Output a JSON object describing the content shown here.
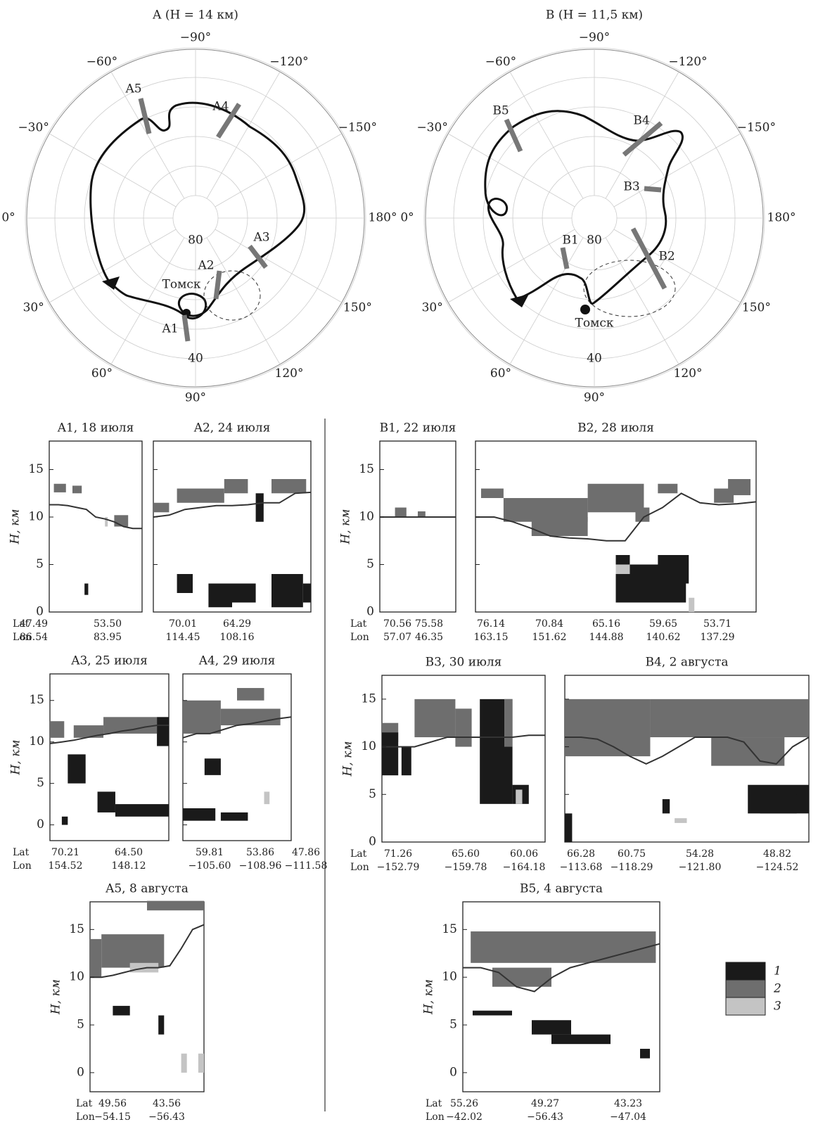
{
  "maps": [
    {
      "title": "A (H = 14 км)",
      "lon_labels": [
        {
          "value": -90,
          "label": "−90°"
        },
        {
          "value": -60,
          "label": "−60°"
        },
        {
          "value": -120,
          "label": "−120°"
        },
        {
          "value": -30,
          "label": "−30°"
        },
        {
          "value": -150,
          "label": "−150°"
        },
        {
          "value": 0,
          "label": "0°"
        },
        {
          "value": 180,
          "label": "180°"
        },
        {
          "value": 30,
          "label": "30°"
        },
        {
          "value": 150,
          "label": "150°"
        },
        {
          "value": 60,
          "label": "60°"
        },
        {
          "value": 120,
          "label": "120°"
        },
        {
          "value": 90,
          "label": "90°"
        }
      ],
      "lat_labels": [
        80,
        40
      ],
      "segments": [
        "A1",
        "A2",
        "A3",
        "A4",
        "A5"
      ],
      "city": "Томск"
    },
    {
      "title": "B (H = 11,5 км)",
      "lon_labels": [
        {
          "value": -90,
          "label": "−90°"
        },
        {
          "value": -60,
          "label": "−60°"
        },
        {
          "value": -120,
          "label": "−120°"
        },
        {
          "value": -30,
          "label": "−30°"
        },
        {
          "value": -150,
          "label": "−150°"
        },
        {
          "value": 0,
          "label": "0°"
        },
        {
          "value": 180,
          "label": "180°"
        },
        {
          "value": 30,
          "label": "30°"
        },
        {
          "value": 150,
          "label": "150°"
        },
        {
          "value": 60,
          "label": "60°"
        },
        {
          "value": 120,
          "label": "120°"
        },
        {
          "value": 90,
          "label": "90°"
        }
      ],
      "lat_labels": [
        80,
        40
      ],
      "segments": [
        "B1",
        "B2",
        "B3",
        "B4",
        "B5"
      ],
      "city": "Томск"
    }
  ],
  "y_label": "H, км",
  "track_labels": {
    "lat": "Lat",
    "lon": "Lon"
  },
  "yticks": [
    0,
    5,
    10,
    15
  ],
  "panels": [
    {
      "title": "A1, 18 июля",
      "ylim": [
        0,
        18
      ],
      "tick_labels": true,
      "lat": [
        "47.49",
        "53.50"
      ],
      "lon": [
        "86.54",
        "83.95"
      ],
      "tropopause": [
        11.3,
        11.3,
        11.2,
        11,
        10.8,
        10,
        9.8,
        9.5,
        9,
        8.8,
        8.8
      ],
      "clouds": [
        {
          "class": 2,
          "x": [
            0.05,
            0.18
          ],
          "h": [
            12.6,
            13.5
          ]
        },
        {
          "class": 2,
          "x": [
            0.25,
            0.35
          ],
          "h": [
            12.5,
            13.3
          ]
        },
        {
          "class": 2,
          "x": [
            0.7,
            0.85
          ],
          "h": [
            9,
            10.2
          ]
        },
        {
          "class": 1,
          "x": [
            0.38,
            0.42
          ],
          "h": [
            1.8,
            3
          ]
        },
        {
          "class": 3,
          "x": [
            0.6,
            0.63
          ],
          "h": [
            9,
            10
          ]
        }
      ]
    },
    {
      "title": "A2, 24 июля",
      "ylim": [
        0,
        18
      ],
      "tick_labels": false,
      "lat": [
        "70.01",
        "64.29"
      ],
      "lon": [
        "114.45",
        "108.16"
      ],
      "tropopause": [
        10,
        10.2,
        10.8,
        11,
        11.2,
        11.2,
        11.3,
        11.5,
        11.5,
        12.5,
        12.6
      ],
      "clouds": [
        {
          "class": 2,
          "x": [
            0,
            0.1
          ],
          "h": [
            10.5,
            11.5
          ]
        },
        {
          "class": 2,
          "x": [
            0.15,
            0.45
          ],
          "h": [
            11.5,
            13
          ]
        },
        {
          "class": 2,
          "x": [
            0.45,
            0.6
          ],
          "h": [
            12.5,
            14
          ]
        },
        {
          "class": 1,
          "x": [
            0.65,
            0.7
          ],
          "h": [
            9.5,
            12.5
          ]
        },
        {
          "class": 2,
          "x": [
            0.75,
            0.97
          ],
          "h": [
            12.5,
            14
          ]
        },
        {
          "class": 1,
          "x": [
            0.15,
            0.25
          ],
          "h": [
            2,
            4
          ]
        },
        {
          "class": 1,
          "x": [
            0.35,
            0.5
          ],
          "h": [
            0.5,
            3
          ]
        },
        {
          "class": 1,
          "x": [
            0.5,
            0.65
          ],
          "h": [
            1,
            3
          ]
        },
        {
          "class": 1,
          "x": [
            0.75,
            0.95
          ],
          "h": [
            0.5,
            4
          ]
        },
        {
          "class": 1,
          "x": [
            0.95,
            1
          ],
          "h": [
            1,
            3
          ]
        }
      ]
    },
    {
      "title": "B1, 22 июля",
      "ylim": [
        0,
        18
      ],
      "tick_labels": true,
      "lat": [
        "70.56",
        "75.58"
      ],
      "lon": [
        "57.07",
        "46.35"
      ],
      "tropopause": [
        10,
        10,
        10,
        10
      ],
      "clouds": [
        {
          "class": 2,
          "x": [
            0.2,
            0.35
          ],
          "h": [
            10,
            11
          ]
        },
        {
          "class": 2,
          "x": [
            0.5,
            0.6
          ],
          "h": [
            10,
            10.6
          ]
        }
      ]
    },
    {
      "title": "B2, 28 июля",
      "ylim": [
        0,
        18
      ],
      "tick_labels": false,
      "lat": [
        "76.14",
        "70.84",
        "65.16",
        "59.65",
        "53.71"
      ],
      "lon": [
        "163.15",
        "151.62",
        "144.88",
        "140.62",
        "137.29"
      ],
      "tropopause": [
        10,
        10,
        9.5,
        8.8,
        8,
        7.8,
        7.7,
        7.5,
        7.5,
        10,
        11,
        12.5,
        11.5,
        11.3,
        11.4,
        11.6
      ],
      "clouds": [
        {
          "class": 2,
          "x": [
            0.02,
            0.1
          ],
          "h": [
            12,
            13
          ]
        },
        {
          "class": 2,
          "x": [
            0.1,
            0.4
          ],
          "h": [
            9.5,
            12
          ]
        },
        {
          "class": 2,
          "x": [
            0.2,
            0.4
          ],
          "h": [
            8,
            10
          ]
        },
        {
          "class": 2,
          "x": [
            0.4,
            0.6
          ],
          "h": [
            10.5,
            13.5
          ]
        },
        {
          "class": 2,
          "x": [
            0.57,
            0.62
          ],
          "h": [
            9.5,
            11
          ]
        },
        {
          "class": 2,
          "x": [
            0.85,
            0.92
          ],
          "h": [
            11.5,
            13
          ]
        },
        {
          "class": 2,
          "x": [
            0.9,
            0.98
          ],
          "h": [
            12.3,
            14
          ]
        },
        {
          "class": 2,
          "x": [
            0.65,
            0.72
          ],
          "h": [
            12.5,
            13.5
          ]
        },
        {
          "class": 1,
          "x": [
            0.5,
            0.55
          ],
          "h": [
            5,
            6
          ]
        },
        {
          "class": 1,
          "x": [
            0.5,
            0.75
          ],
          "h": [
            1,
            5
          ]
        },
        {
          "class": 1,
          "x": [
            0.65,
            0.76
          ],
          "h": [
            3,
            6
          ]
        },
        {
          "class": 3,
          "x": [
            0.5,
            0.55
          ],
          "h": [
            4,
            5
          ]
        },
        {
          "class": 3,
          "x": [
            0.76,
            0.78
          ],
          "h": [
            0,
            1.5
          ]
        }
      ]
    },
    {
      "title": "A3, 25 июля",
      "ylim": [
        -1.9,
        18.2
      ],
      "tick_labels": true,
      "lat": [
        "70.21",
        "64.50"
      ],
      "lon": [
        "154.52",
        "148.12"
      ],
      "tropopause": [
        9.8,
        10,
        10.2,
        10.5,
        10.8,
        11,
        11.3,
        11.5,
        11.8,
        12,
        12
      ],
      "clouds": [
        {
          "class": 2,
          "x": [
            0,
            0.12
          ],
          "h": [
            10.5,
            12.5
          ]
        },
        {
          "class": 2,
          "x": [
            0.2,
            0.45
          ],
          "h": [
            10.5,
            12
          ]
        },
        {
          "class": 2,
          "x": [
            0.45,
            0.9
          ],
          "h": [
            11,
            13
          ]
        },
        {
          "class": 1,
          "x": [
            0.9,
            1
          ],
          "h": [
            9.5,
            13
          ]
        },
        {
          "class": 1,
          "x": [
            0.15,
            0.3
          ],
          "h": [
            5,
            8.5
          ]
        },
        {
          "class": 1,
          "x": [
            0.4,
            0.55
          ],
          "h": [
            1.5,
            4
          ]
        },
        {
          "class": 1,
          "x": [
            0.55,
            1
          ],
          "h": [
            1,
            2.5
          ]
        },
        {
          "class": 1,
          "x": [
            0.1,
            0.15
          ],
          "h": [
            0,
            1
          ]
        }
      ]
    },
    {
      "title": "A4, 29 июля",
      "ylim": [
        -1.9,
        18.2
      ],
      "tick_labels": false,
      "lat": [
        "59.81",
        "53.86",
        "47.86"
      ],
      "lon": [
        "−105.60",
        "−108.96",
        "−111.58"
      ],
      "tropopause": [
        10.5,
        11,
        11,
        11.5,
        12,
        12.2,
        12.5,
        12.8,
        13
      ],
      "clouds": [
        {
          "class": 2,
          "x": [
            0,
            0.35
          ],
          "h": [
            11,
            15
          ]
        },
        {
          "class": 2,
          "x": [
            0.35,
            0.9
          ],
          "h": [
            12,
            14
          ]
        },
        {
          "class": 2,
          "x": [
            0.5,
            0.75
          ],
          "h": [
            15,
            16.5
          ]
        },
        {
          "class": 1,
          "x": [
            0.2,
            0.35
          ],
          "h": [
            6,
            8
          ]
        },
        {
          "class": 1,
          "x": [
            0,
            0.3
          ],
          "h": [
            0.5,
            2
          ]
        },
        {
          "class": 1,
          "x": [
            0.35,
            0.6
          ],
          "h": [
            0.5,
            1.5
          ]
        },
        {
          "class": 3,
          "x": [
            0.75,
            0.8
          ],
          "h": [
            2.5,
            4
          ]
        }
      ]
    },
    {
      "title": "B3, 30 июля",
      "ylim": [
        0,
        17.5
      ],
      "tick_labels": true,
      "lat": [
        "71.26",
        "65.60",
        "60.06"
      ],
      "lon": [
        "−152.79",
        "−159.78",
        "−164.18"
      ],
      "tropopause": [
        10,
        10,
        10,
        10.5,
        11,
        11,
        11,
        11,
        11,
        11.2,
        11.2
      ],
      "clouds": [
        {
          "class": 2,
          "x": [
            0,
            0.1
          ],
          "h": [
            10.5,
            12.5
          ]
        },
        {
          "class": 2,
          "x": [
            0.2,
            0.45
          ],
          "h": [
            11,
            15
          ]
        },
        {
          "class": 2,
          "x": [
            0.45,
            0.55
          ],
          "h": [
            10,
            14
          ]
        },
        {
          "class": 1,
          "x": [
            0,
            0.1
          ],
          "h": [
            7,
            11.5
          ]
        },
        {
          "class": 1,
          "x": [
            0.12,
            0.18
          ],
          "h": [
            7,
            10
          ]
        },
        {
          "class": 1,
          "x": [
            0.6,
            0.8
          ],
          "h": [
            4,
            15
          ]
        },
        {
          "class": 1,
          "x": [
            0.8,
            0.9
          ],
          "h": [
            4,
            6
          ]
        },
        {
          "class": 2,
          "x": [
            0.75,
            0.8
          ],
          "h": [
            10,
            15
          ]
        },
        {
          "class": 3,
          "x": [
            0.82,
            0.86
          ],
          "h": [
            4,
            5.5
          ]
        }
      ]
    },
    {
      "title": "B4, 2 августа",
      "ylim": [
        0,
        17.5
      ],
      "tick_labels": false,
      "lat": [
        "66.28",
        "60.75",
        "54.28",
        "48.82"
      ],
      "lon": [
        "−113.68",
        "−118.29",
        "−121.80",
        "−124.52"
      ],
      "tropopause": [
        11,
        11,
        10.8,
        10,
        9,
        8.2,
        9,
        10,
        11,
        11,
        11,
        10.5,
        8.5,
        8.2,
        10,
        11
      ],
      "clouds": [
        {
          "class": 2,
          "x": [
            0,
            0.35
          ],
          "h": [
            9,
            15
          ]
        },
        {
          "class": 2,
          "x": [
            0.35,
            1
          ],
          "h": [
            11,
            15
          ]
        },
        {
          "class": 2,
          "x": [
            0.6,
            0.9
          ],
          "h": [
            8,
            11
          ]
        },
        {
          "class": 1,
          "x": [
            0.75,
            1
          ],
          "h": [
            3,
            6
          ]
        },
        {
          "class": 1,
          "x": [
            0.8,
            0.95
          ],
          "h": [
            3,
            5
          ]
        },
        {
          "class": 1,
          "x": [
            0,
            0.03
          ],
          "h": [
            0,
            3
          ]
        },
        {
          "class": 1,
          "x": [
            0.4,
            0.43
          ],
          "h": [
            3,
            4.5
          ]
        },
        {
          "class": 3,
          "x": [
            0.45,
            0.5
          ],
          "h": [
            2,
            2.5
          ]
        }
      ]
    },
    {
      "title": "A5, 8 августа",
      "ylim": [
        -2,
        17.9
      ],
      "tick_labels": true,
      "lat": [
        "49.56",
        "43.56"
      ],
      "lon": [
        "−54.15",
        "−56.43"
      ],
      "tropopause": [
        10,
        10,
        10.2,
        10.5,
        10.8,
        11,
        11,
        11.2,
        13,
        15,
        15.5
      ],
      "clouds": [
        {
          "class": 2,
          "x": [
            0,
            0.1
          ],
          "h": [
            10,
            14
          ]
        },
        {
          "class": 2,
          "x": [
            0.1,
            0.65
          ],
          "h": [
            11,
            14.5
          ]
        },
        {
          "class": 2,
          "x": [
            0.5,
            1
          ],
          "h": [
            17,
            18
          ]
        },
        {
          "class": 3,
          "x": [
            0.35,
            0.6
          ],
          "h": [
            10.5,
            11.5
          ]
        },
        {
          "class": 1,
          "x": [
            0.2,
            0.35
          ],
          "h": [
            6,
            7
          ]
        },
        {
          "class": 1,
          "x": [
            0.6,
            0.65
          ],
          "h": [
            4,
            6
          ]
        },
        {
          "class": 3,
          "x": [
            0.8,
            0.85
          ],
          "h": [
            0,
            2
          ]
        },
        {
          "class": 3,
          "x": [
            0.95,
            1
          ],
          "h": [
            0,
            2
          ]
        }
      ]
    },
    {
      "title": "B5, 4 августа",
      "ylim": [
        -2,
        17.9
      ],
      "tick_labels": true,
      "lat": [
        "55.26",
        "49.27",
        "43.23"
      ],
      "lon": [
        "−42.02",
        "−56.43",
        "−47.04"
      ],
      "tropopause": [
        11,
        11,
        10.5,
        9,
        8.5,
        10,
        11,
        11.5,
        12,
        12.5,
        13,
        13.5
      ],
      "clouds": [
        {
          "class": 2,
          "x": [
            0.04,
            0.98
          ],
          "h": [
            11.5,
            14.8
          ]
        },
        {
          "class": 2,
          "x": [
            0.15,
            0.45
          ],
          "h": [
            9,
            11
          ]
        },
        {
          "class": 1,
          "x": [
            0.05,
            0.25
          ],
          "h": [
            6,
            6.5
          ]
        },
        {
          "class": 1,
          "x": [
            0.35,
            0.55
          ],
          "h": [
            4,
            5.5
          ]
        },
        {
          "class": 1,
          "x": [
            0.45,
            0.75
          ],
          "h": [
            3,
            4
          ]
        },
        {
          "class": 1,
          "x": [
            0.9,
            0.95
          ],
          "h": [
            1.5,
            2.5
          ]
        }
      ]
    }
  ],
  "legend": [
    {
      "label": "1",
      "color": "#1a1a1a"
    },
    {
      "label": "2",
      "color": "#6e6e6e"
    },
    {
      "label": "3",
      "color": "#c4c4c4"
    }
  ]
}
